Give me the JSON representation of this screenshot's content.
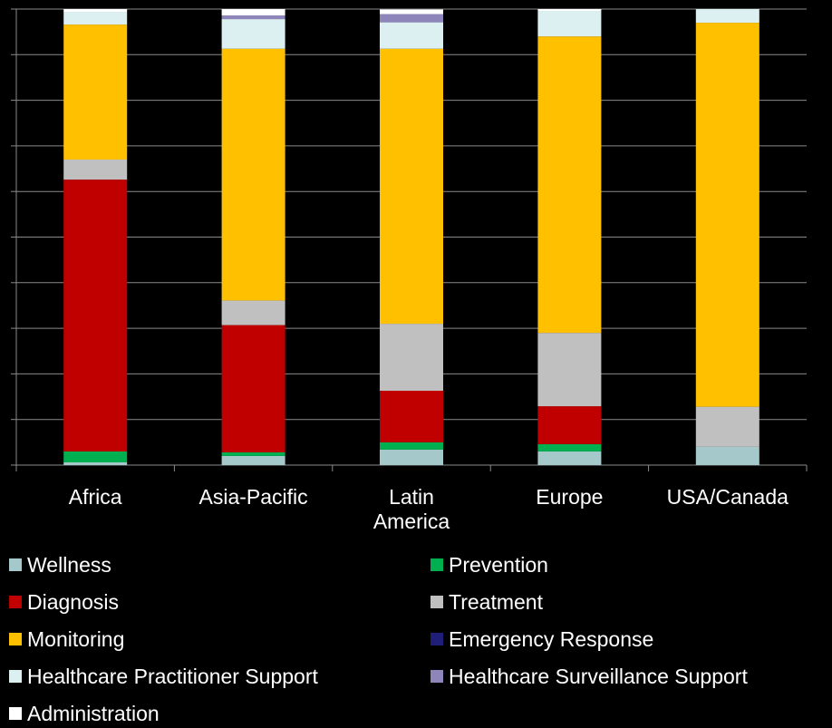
{
  "chart_data": {
    "type": "bar",
    "stacked": true,
    "percent_stacked": true,
    "ylim": [
      0,
      100
    ],
    "grid": true,
    "legend_position": "bottom",
    "categories": [
      "Africa",
      "Asia-Pacific",
      "Latin\nAmerica",
      "Europe",
      "USA/Canada"
    ],
    "series": [
      {
        "name": "Wellness",
        "color": "#a5c9cb",
        "values": [
          0.6,
          2.0,
          3.4,
          3.0,
          4.0
        ]
      },
      {
        "name": "Prevention",
        "color": "#00b050",
        "values": [
          2.4,
          0.8,
          1.6,
          1.6,
          0.0
        ]
      },
      {
        "name": "Diagnosis",
        "color": "#c00000",
        "values": [
          59.6,
          27.9,
          11.3,
          8.3,
          0.0
        ]
      },
      {
        "name": "Treatment",
        "color": "#c0c0c0",
        "values": [
          4.4,
          5.4,
          14.7,
          16.1,
          8.8
        ]
      },
      {
        "name": "Monitoring",
        "color": "#ffc000",
        "values": [
          29.6,
          55.2,
          60.3,
          65.0,
          84.2
        ]
      },
      {
        "name": "Emergency Response",
        "color": "#1f1f7a",
        "values": [
          0.0,
          0.0,
          0.0,
          0.0,
          0.0
        ]
      },
      {
        "name": "Healthcare Practitioner Support",
        "color": "#dcf0f2",
        "values": [
          2.8,
          6.5,
          5.8,
          5.6,
          3.0
        ]
      },
      {
        "name": "Healthcare Surveillance Support",
        "color": "#8e86ba",
        "values": [
          0.0,
          0.8,
          1.8,
          0.0,
          0.0
        ]
      },
      {
        "name": "Administration",
        "color": "#ffffff",
        "values": [
          0.6,
          1.4,
          1.0,
          0.4,
          0.0
        ]
      }
    ]
  }
}
